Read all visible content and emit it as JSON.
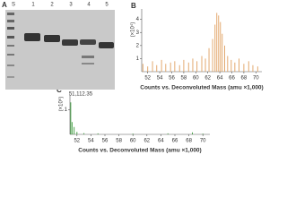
{
  "panels": {
    "a": "A",
    "b": "B",
    "c": "C"
  },
  "gel": {
    "lanes": [
      "S",
      "1",
      "2",
      "3",
      "4",
      "5"
    ]
  },
  "chart_data": [
    {
      "type": "spectrum",
      "ylabel": "(×10⁴)",
      "xlabel": "Counts vs. Deconvoluted Mass (amu ×1,000)",
      "color": "#e0a060",
      "x": [
        51.2,
        52.0,
        52.8,
        53.5,
        54.3,
        55.0,
        55.8,
        56.5,
        57.3,
        58.0,
        58.8,
        59.5,
        60.2,
        61.0,
        61.6,
        62.2,
        62.8,
        63.2,
        63.5,
        63.8,
        64.1,
        64.4,
        64.8,
        65.3,
        65.9,
        66.5,
        67.2,
        68.0,
        68.8,
        69.5,
        70.3
      ],
      "values": [
        0.6,
        0.4,
        0.8,
        0.5,
        0.9,
        0.6,
        0.7,
        0.8,
        0.5,
        0.9,
        0.7,
        1.0,
        0.8,
        1.2,
        1.0,
        1.8,
        2.5,
        3.6,
        4.5,
        4.3,
        3.8,
        2.9,
        2.0,
        1.2,
        0.9,
        0.7,
        1.0,
        0.6,
        0.8,
        0.5,
        0.4
      ],
      "xlim": [
        51,
        71
      ],
      "xticks": [
        52,
        54,
        56,
        58,
        60,
        62,
        64,
        66,
        68,
        70
      ],
      "ylim": [
        0,
        4.8
      ],
      "yticks": [
        1,
        2,
        3,
        4
      ]
    },
    {
      "type": "spectrum",
      "ylabel": "(×10⁶)",
      "xlabel": "Counts vs. Deconvoluted Mass (amu ×1,000)",
      "color": "#3a9a3a",
      "annotation": "51,112.35",
      "x": [
        51.11,
        51.3,
        51.6,
        52.0,
        53.0,
        55.0,
        60.0,
        65.0,
        68.5,
        70.0
      ],
      "values": [
        1.3,
        0.5,
        0.3,
        0.1,
        0.05,
        0.04,
        0.03,
        0.04,
        0.08,
        0.03
      ],
      "xlim": [
        51,
        71
      ],
      "xticks": [
        52,
        54,
        56,
        58,
        60,
        62,
        64,
        66,
        68,
        70
      ],
      "ylim": [
        0,
        1.6
      ],
      "yticks": [
        1
      ]
    }
  ]
}
